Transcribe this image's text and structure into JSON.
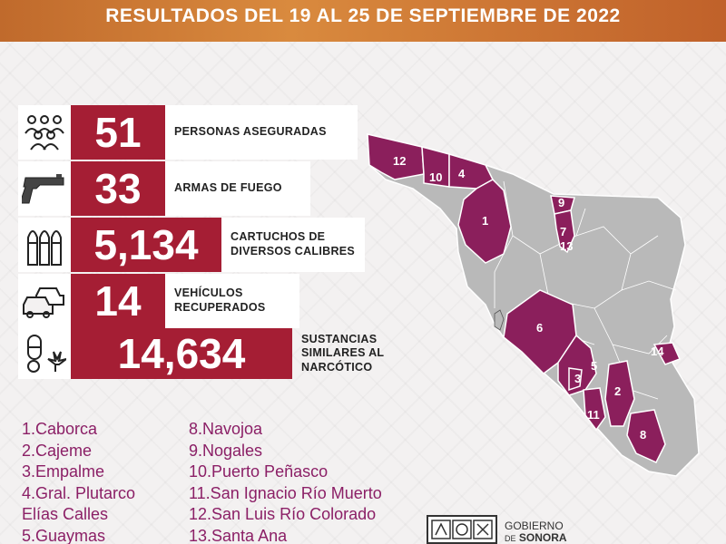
{
  "banner": {
    "title": "RESULTADOS DEL 19 AL 25 DE SEPTIEMBRE DE 2022"
  },
  "stats": [
    {
      "icon": "people-icon",
      "value": "51",
      "label_lines": [
        "PERSONAS ASEGURADAS"
      ]
    },
    {
      "icon": "gun-icon",
      "value": "33",
      "label_lines": [
        "ARMAS DE FUEGO"
      ]
    },
    {
      "icon": "bullets-icon",
      "value": "5,134",
      "label_lines": [
        "CARTUCHOS DE",
        "DIVERSOS CALIBRES"
      ]
    },
    {
      "icon": "cars-icon",
      "value": "14",
      "label_lines": [
        "VEHÍCULOS",
        "RECUPERADOS"
      ]
    },
    {
      "icon": "drugs-icon",
      "value": "14,634",
      "label_lines": [
        "SUSTANCIAS",
        "SIMILARES AL",
        "NARCÓTICO"
      ]
    }
  ],
  "legend": {
    "col1": [
      "1.Caborca",
      "2.Cajeme",
      "3.Empalme",
      "4.Gral. Plutarco",
      "Elías Calles",
      "5.Guaymas"
    ],
    "col2": [
      "8.Navojoa",
      "9.Nogales",
      "10.Puerto Peñasco",
      "11.San Ignacio Río Muerto",
      "12.San Luis Río Colorado",
      "13.Santa Ana"
    ]
  },
  "map": {
    "labels": [
      "12",
      "10",
      "4",
      "1",
      "9",
      "7",
      "13",
      "6",
      "14",
      "5",
      "3",
      "2",
      "11",
      "8"
    ],
    "highlight_color": "#8b1f5c",
    "base_color": "#b9b9b9"
  },
  "footer": {
    "gov_line1": "GOBIERNO",
    "gov_line2_prefix": "DE",
    "gov_line2": "SONORA"
  },
  "colors": {
    "accent": "#a51e34",
    "banner": "#c96f30",
    "legend_text": "#8b1f66"
  }
}
